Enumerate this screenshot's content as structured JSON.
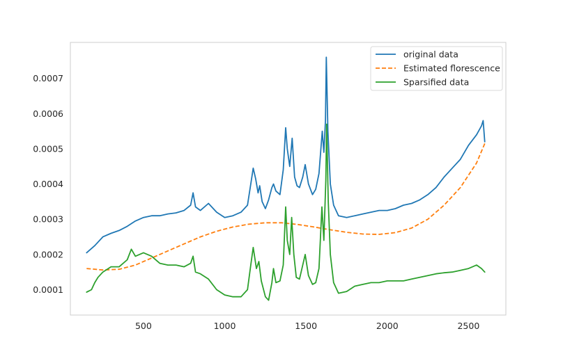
{
  "chart_data": {
    "type": "line",
    "title": "",
    "xlabel": "",
    "ylabel": "",
    "xlim": [
      50,
      2730
    ],
    "ylim": [
      2.8e-05,
      0.000802
    ],
    "grid": false,
    "legend_position": "top-right",
    "x_ticks": [
      500,
      1000,
      1500,
      2000,
      2500
    ],
    "x_tick_labels": [
      "500",
      "1000",
      "1500",
      "2000",
      "2500"
    ],
    "y_ticks": [
      0.0001,
      0.0002,
      0.0003,
      0.0004,
      0.0005,
      0.0006,
      0.0007
    ],
    "y_tick_labels": [
      "0.0001",
      "0.0002",
      "0.0003",
      "0.0004",
      "0.0005",
      "0.0006",
      "0.0007"
    ],
    "series": [
      {
        "name": "original data",
        "color": "#1f77b4",
        "dash": "solid",
        "points": [
          [
            150,
            0.000205
          ],
          [
            200,
            0.000225
          ],
          [
            250,
            0.00025
          ],
          [
            300,
            0.00026
          ],
          [
            350,
            0.000268
          ],
          [
            400,
            0.00028
          ],
          [
            450,
            0.000295
          ],
          [
            500,
            0.000305
          ],
          [
            550,
            0.00031
          ],
          [
            600,
            0.00031
          ],
          [
            650,
            0.000315
          ],
          [
            700,
            0.000318
          ],
          [
            750,
            0.000325
          ],
          [
            790,
            0.00034
          ],
          [
            805,
            0.000375
          ],
          [
            820,
            0.000335
          ],
          [
            850,
            0.000325
          ],
          [
            900,
            0.000345
          ],
          [
            950,
            0.00032
          ],
          [
            1000,
            0.000305
          ],
          [
            1050,
            0.00031
          ],
          [
            1100,
            0.00032
          ],
          [
            1140,
            0.00034
          ],
          [
            1160,
            0.0004
          ],
          [
            1175,
            0.000445
          ],
          [
            1190,
            0.000415
          ],
          [
            1205,
            0.000375
          ],
          [
            1215,
            0.000395
          ],
          [
            1230,
            0.00035
          ],
          [
            1250,
            0.00033
          ],
          [
            1270,
            0.000355
          ],
          [
            1290,
            0.00039
          ],
          [
            1300,
            0.0004
          ],
          [
            1315,
            0.00038
          ],
          [
            1340,
            0.00037
          ],
          [
            1360,
            0.00044
          ],
          [
            1375,
            0.00056
          ],
          [
            1385,
            0.0005
          ],
          [
            1400,
            0.00045
          ],
          [
            1415,
            0.00053
          ],
          [
            1430,
            0.00042
          ],
          [
            1445,
            0.000395
          ],
          [
            1460,
            0.00039
          ],
          [
            1480,
            0.00042
          ],
          [
            1495,
            0.000455
          ],
          [
            1515,
            0.0004
          ],
          [
            1540,
            0.00037
          ],
          [
            1560,
            0.000385
          ],
          [
            1580,
            0.00043
          ],
          [
            1600,
            0.00055
          ],
          [
            1610,
            0.00049
          ],
          [
            1620,
            0.00058
          ],
          [
            1625,
            0.00076
          ],
          [
            1635,
            0.00055
          ],
          [
            1650,
            0.0004
          ],
          [
            1670,
            0.00034
          ],
          [
            1700,
            0.00031
          ],
          [
            1750,
            0.000305
          ],
          [
            1800,
            0.00031
          ],
          [
            1850,
            0.000315
          ],
          [
            1900,
            0.00032
          ],
          [
            1950,
            0.000325
          ],
          [
            2000,
            0.000325
          ],
          [
            2050,
            0.00033
          ],
          [
            2100,
            0.00034
          ],
          [
            2150,
            0.000345
          ],
          [
            2200,
            0.000355
          ],
          [
            2250,
            0.00037
          ],
          [
            2300,
            0.00039
          ],
          [
            2350,
            0.00042
          ],
          [
            2400,
            0.000445
          ],
          [
            2450,
            0.00047
          ],
          [
            2500,
            0.00051
          ],
          [
            2550,
            0.00054
          ],
          [
            2580,
            0.000565
          ],
          [
            2590,
            0.00058
          ],
          [
            2600,
            0.00052
          ]
        ]
      },
      {
        "name": "Estimated florescence",
        "color": "#ff7f0e",
        "dash": "dashed",
        "points": [
          [
            150,
            0.00016
          ],
          [
            250,
            0.000156
          ],
          [
            350,
            0.000158
          ],
          [
            450,
            0.00017
          ],
          [
            550,
            0.00019
          ],
          [
            650,
            0.00021
          ],
          [
            750,
            0.00023
          ],
          [
            850,
            0.00025
          ],
          [
            950,
            0.000266
          ],
          [
            1050,
            0.000278
          ],
          [
            1150,
            0.000286
          ],
          [
            1250,
            0.00029
          ],
          [
            1350,
            0.00029
          ],
          [
            1450,
            0.000285
          ],
          [
            1550,
            0.000278
          ],
          [
            1650,
            0.00027
          ],
          [
            1750,
            0.000263
          ],
          [
            1850,
            0.000258
          ],
          [
            1950,
            0.000257
          ],
          [
            2050,
            0.000262
          ],
          [
            2150,
            0.000275
          ],
          [
            2250,
            0.0003
          ],
          [
            2350,
            0.00034
          ],
          [
            2450,
            0.00039
          ],
          [
            2550,
            0.00046
          ],
          [
            2600,
            0.000515
          ]
        ]
      },
      {
        "name": "Sparsified data",
        "color": "#2ca02c",
        "dash": "solid",
        "points": [
          [
            150,
            9.3e-05
          ],
          [
            180,
            0.0001
          ],
          [
            200,
            0.00012
          ],
          [
            220,
            0.000135
          ],
          [
            250,
            0.00015
          ],
          [
            300,
            0.000165
          ],
          [
            350,
            0.000165
          ],
          [
            400,
            0.000185
          ],
          [
            425,
            0.000215
          ],
          [
            450,
            0.000195
          ],
          [
            500,
            0.000205
          ],
          [
            550,
            0.000195
          ],
          [
            600,
            0.000175
          ],
          [
            650,
            0.00017
          ],
          [
            700,
            0.00017
          ],
          [
            750,
            0.000165
          ],
          [
            790,
            0.000175
          ],
          [
            805,
            0.000195
          ],
          [
            820,
            0.00015
          ],
          [
            850,
            0.000145
          ],
          [
            900,
            0.00013
          ],
          [
            950,
            0.0001
          ],
          [
            1000,
            8.5e-05
          ],
          [
            1050,
            8e-05
          ],
          [
            1100,
            8e-05
          ],
          [
            1140,
            0.0001
          ],
          [
            1160,
            0.00017
          ],
          [
            1175,
            0.00022
          ],
          [
            1195,
            0.00016
          ],
          [
            1210,
            0.00018
          ],
          [
            1225,
            0.000125
          ],
          [
            1250,
            8e-05
          ],
          [
            1270,
            7e-05
          ],
          [
            1290,
            0.00012
          ],
          [
            1300,
            0.00016
          ],
          [
            1315,
            0.00012
          ],
          [
            1340,
            0.000125
          ],
          [
            1360,
            0.00017
          ],
          [
            1375,
            0.000335
          ],
          [
            1385,
            0.00024
          ],
          [
            1400,
            0.0002
          ],
          [
            1412,
            0.000305
          ],
          [
            1425,
            0.0002
          ],
          [
            1440,
            0.000135
          ],
          [
            1460,
            0.00013
          ],
          [
            1480,
            0.00017
          ],
          [
            1495,
            0.0002
          ],
          [
            1515,
            0.00014
          ],
          [
            1540,
            0.000115
          ],
          [
            1560,
            0.00012
          ],
          [
            1580,
            0.00016
          ],
          [
            1598,
            0.000335
          ],
          [
            1610,
            0.00024
          ],
          [
            1622,
            0.00041
          ],
          [
            1627,
            0.00057
          ],
          [
            1637,
            0.00035
          ],
          [
            1650,
            0.0002
          ],
          [
            1670,
            0.00012
          ],
          [
            1700,
            9e-05
          ],
          [
            1750,
            9.5e-05
          ],
          [
            1800,
            0.00011
          ],
          [
            1850,
            0.000115
          ],
          [
            1900,
            0.00012
          ],
          [
            1950,
            0.00012
          ],
          [
            2000,
            0.000125
          ],
          [
            2050,
            0.000125
          ],
          [
            2100,
            0.000125
          ],
          [
            2150,
            0.00013
          ],
          [
            2200,
            0.000135
          ],
          [
            2250,
            0.00014
          ],
          [
            2300,
            0.000145
          ],
          [
            2350,
            0.000148
          ],
          [
            2400,
            0.00015
          ],
          [
            2450,
            0.000155
          ],
          [
            2500,
            0.00016
          ],
          [
            2550,
            0.00017
          ],
          [
            2580,
            0.00016
          ],
          [
            2600,
            0.00015
          ]
        ]
      }
    ]
  }
}
